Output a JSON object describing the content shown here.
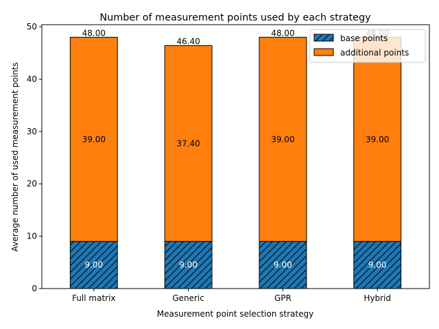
{
  "chart_data": {
    "type": "bar",
    "stacked": true,
    "title": "Number of measurement points used by each strategy",
    "xlabel": "Measurement point selection strategy",
    "ylabel": "Average number of used measurement points",
    "categories": [
      "Full matrix",
      "Generic",
      "GPR",
      "Hybrid"
    ],
    "series": [
      {
        "name": "base points",
        "values": [
          9.0,
          9.0,
          9.0,
          9.0
        ],
        "color": "#1f77b4",
        "hatch": "diagonal",
        "label_color": "#ffffff"
      },
      {
        "name": "additional points",
        "values": [
          39.0,
          37.4,
          39.0,
          39.0
        ],
        "color": "#ff7f0e",
        "hatch": "none",
        "label_color": "#000000"
      }
    ],
    "segment_labels": [
      [
        "9.00",
        "9.00",
        "9.00",
        "9.00"
      ],
      [
        "39.00",
        "37.40",
        "39.00",
        "39.00"
      ]
    ],
    "totals": [
      48.0,
      46.4,
      48.0,
      48.0
    ],
    "total_labels": [
      "48.00",
      "46.40",
      "48.00",
      "48.00"
    ],
    "ylim": [
      0,
      50.4
    ],
    "yticks": [
      0,
      10,
      20,
      30,
      40,
      50
    ],
    "ytick_labels": [
      "0",
      "10",
      "20",
      "30",
      "40",
      "50"
    ],
    "grid": false,
    "legend_position": "top-right"
  }
}
